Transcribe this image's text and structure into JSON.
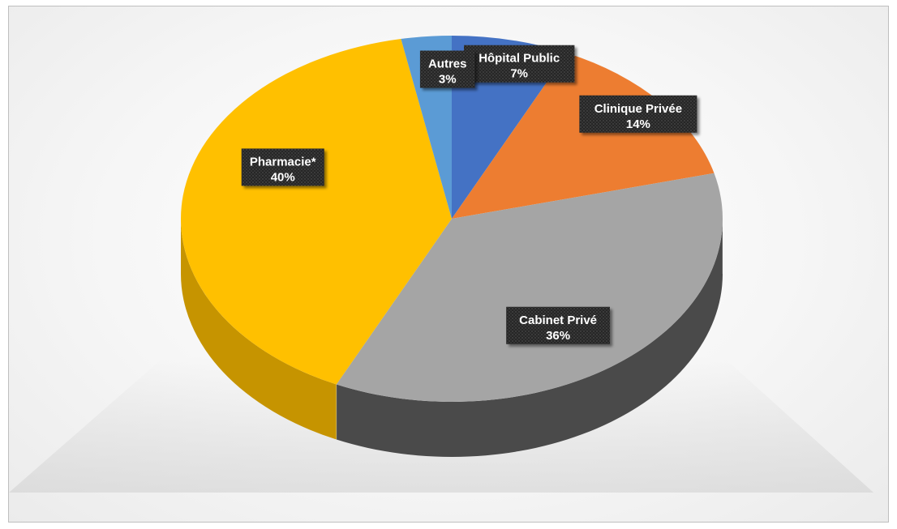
{
  "chart_data": {
    "type": "pie",
    "style": "3d",
    "slices": [
      {
        "name": "Hôpital Public",
        "value": 7,
        "label": "7%",
        "color": "#4472C4",
        "side_color": "#2F528F"
      },
      {
        "name": "Clinique Privée",
        "value": 14,
        "label": "14%",
        "color": "#ED7D31",
        "side_color": "#B35C22"
      },
      {
        "name": "Cabinet Privé",
        "value": 36,
        "label": "36%",
        "color": "#A5A5A5",
        "side_color": "#4A4A4A"
      },
      {
        "name": "Pharmacie*",
        "value": 40,
        "label": "40%",
        "color": "#FFC000",
        "side_color": "#C69400"
      },
      {
        "name": "Autres",
        "value": 3,
        "label": "3%",
        "color": "#5B9BD5",
        "side_color": "#3E6F9C"
      }
    ],
    "data_label_style": {
      "background": "#262626",
      "text_color": "#FFFFFF"
    },
    "legend": "none"
  }
}
